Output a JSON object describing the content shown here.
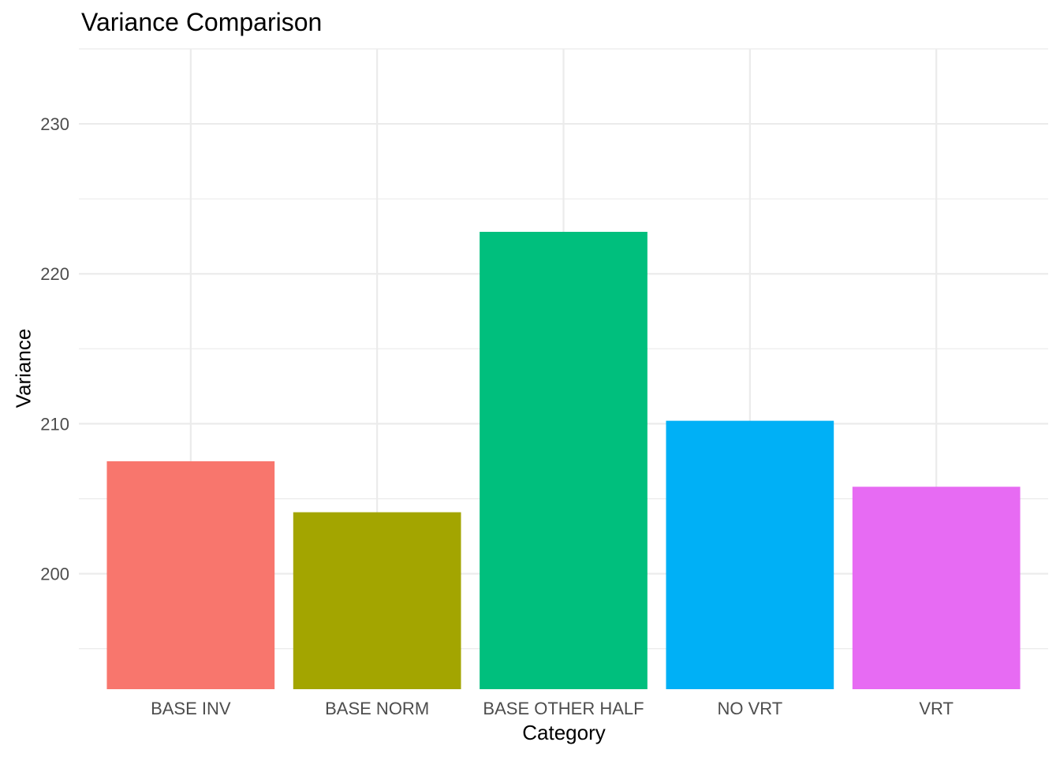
{
  "chart_data": {
    "type": "bar",
    "title": "Variance Comparison",
    "xlabel": "Category",
    "ylabel": "Variance",
    "categories": [
      "BASE INV",
      "BASE NORM",
      "BASE OTHER HALF",
      "NO VRT",
      "VRT"
    ],
    "values": [
      207.5,
      204.1,
      222.8,
      210.2,
      205.8
    ],
    "colors": [
      "#F8766D",
      "#A3A500",
      "#00BF7D",
      "#00B0F6",
      "#E76BF3"
    ],
    "ylim": [
      192.3,
      235.0
    ],
    "yticks": [
      200,
      210,
      220,
      230
    ],
    "ytick_labels": [
      "200",
      "210",
      "220",
      "230"
    ],
    "grid": true,
    "legend": "none"
  }
}
